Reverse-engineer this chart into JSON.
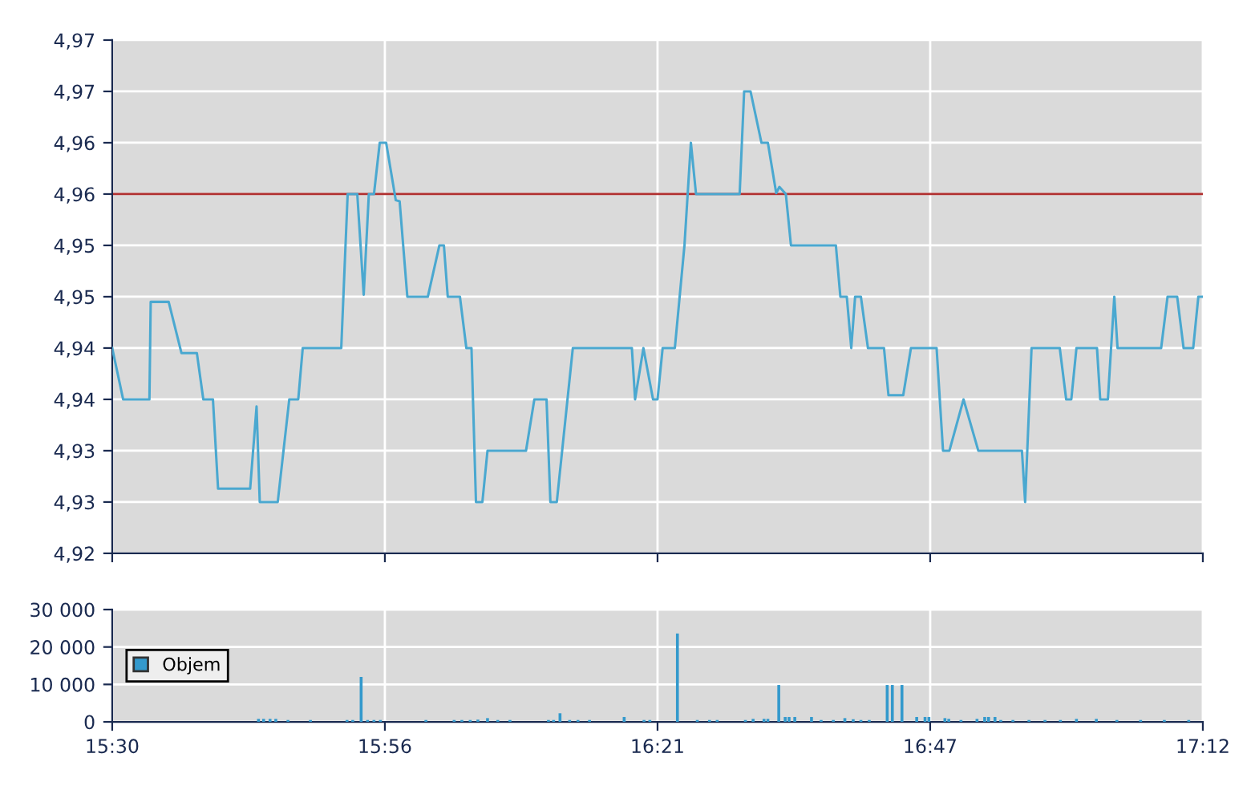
{
  "chart_data": [
    {
      "type": "line",
      "tick_labels": "y",
      "grid": true,
      "legend": false,
      "marker": "none",
      "line_style": "solid",
      "xlim": [
        15.5,
        17.2
      ],
      "xticks": [
        {
          "value": 15.5,
          "label": null
        },
        {
          "value": 15.925,
          "label": null
        },
        {
          "value": 16.35,
          "label": null
        },
        {
          "value": 16.775,
          "label": null
        },
        {
          "value": 17.2,
          "label": null
        }
      ],
      "ylim": [
        4.92,
        4.97
      ],
      "yticks": [
        {
          "value": 4.92,
          "label": "4,92"
        },
        {
          "value": 4.925,
          "label": "4,93"
        },
        {
          "value": 4.93,
          "label": "4,93"
        },
        {
          "value": 4.935,
          "label": "4,94"
        },
        {
          "value": 4.94,
          "label": "4,94"
        },
        {
          "value": 4.945,
          "label": "4,95"
        },
        {
          "value": 4.95,
          "label": "4,95"
        },
        {
          "value": 4.955,
          "label": "4,96"
        },
        {
          "value": 4.96,
          "label": "4,96"
        },
        {
          "value": 4.965,
          "label": "4,97"
        },
        {
          "value": 4.97,
          "label": "4,97"
        }
      ],
      "ref_lines": [
        {
          "axis": "y",
          "value": 4.955,
          "color": "#b03030"
        }
      ],
      "series": [
        {
          "color": "#4aa8d0",
          "x": [
            15.5,
            15.517,
            15.558,
            15.56,
            15.588,
            15.608,
            15.632,
            15.642,
            15.657,
            15.665,
            15.715,
            15.725,
            15.73,
            15.758,
            15.776,
            15.79,
            15.797,
            15.857,
            15.867,
            15.882,
            15.892,
            15.9,
            15.908,
            15.917,
            15.927,
            15.942,
            15.948,
            15.96,
            15.992,
            16.01,
            16.017,
            16.023,
            16.042,
            16.052,
            16.06,
            16.067,
            16.077,
            16.085,
            16.145,
            16.158,
            16.177,
            16.183,
            16.193,
            16.218,
            16.31,
            16.315,
            16.328,
            16.343,
            16.35,
            16.358,
            16.377,
            16.392,
            16.402,
            16.41,
            16.478,
            16.485,
            16.495,
            16.512,
            16.522,
            16.535,
            16.54,
            16.55,
            16.558,
            16.628,
            16.635,
            16.645,
            16.652,
            16.658,
            16.667,
            16.678,
            16.703,
            16.71,
            16.733,
            16.745,
            16.785,
            16.795,
            16.805,
            16.827,
            16.85,
            16.918,
            16.923,
            16.933,
            16.977,
            16.987,
            16.995,
            17.003,
            17.035,
            17.04,
            17.052,
            17.062,
            17.067,
            17.135,
            17.145,
            17.16,
            17.17,
            17.185,
            17.193,
            17.2
          ],
          "values": [
            4.94,
            4.935,
            4.935,
            4.9445,
            4.9445,
            4.9395,
            4.9395,
            4.935,
            4.935,
            4.9263,
            4.9263,
            4.9343,
            4.925,
            4.925,
            4.935,
            4.935,
            4.94,
            4.94,
            4.955,
            4.955,
            4.9452,
            4.955,
            4.955,
            4.96,
            4.96,
            4.9544,
            4.9543,
            4.945,
            4.945,
            4.95,
            4.95,
            4.945,
            4.945,
            4.94,
            4.94,
            4.925,
            4.925,
            4.93,
            4.93,
            4.935,
            4.935,
            4.925,
            4.925,
            4.94,
            4.94,
            4.935,
            4.94,
            4.935,
            4.935,
            4.94,
            4.94,
            4.95,
            4.96,
            4.955,
            4.955,
            4.965,
            4.965,
            4.96,
            4.96,
            4.9551,
            4.9557,
            4.955,
            4.95,
            4.95,
            4.945,
            4.945,
            4.94,
            4.945,
            4.945,
            4.94,
            4.94,
            4.9354,
            4.9354,
            4.94,
            4.94,
            4.93,
            4.93,
            4.935,
            4.93,
            4.93,
            4.925,
            4.94,
            4.94,
            4.935,
            4.935,
            4.94,
            4.94,
            4.935,
            4.935,
            4.945,
            4.94,
            4.94,
            4.945,
            4.945,
            4.94,
            4.94,
            4.945,
            4.945
          ]
        }
      ]
    },
    {
      "type": "bar",
      "grid": true,
      "legend": "left",
      "xlim": [
        15.5,
        17.2
      ],
      "xticks": [
        {
          "value": 15.5,
          "label": "15:30"
        },
        {
          "value": 15.925,
          "label": "15:56"
        },
        {
          "value": 16.35,
          "label": "16:21"
        },
        {
          "value": 16.775,
          "label": "16:47"
        },
        {
          "value": 17.2,
          "label": "17:12"
        }
      ],
      "ylim": [
        0,
        30000
      ],
      "yticks": [
        0,
        {
          "value": 10000,
          "label": "10 000"
        },
        {
          "value": 20000,
          "label": "20 000"
        },
        {
          "value": 30000,
          "label": "30 000"
        }
      ],
      "x": [
        15.728,
        15.736,
        15.746,
        15.755,
        15.774,
        15.809,
        15.866,
        15.875,
        15.888,
        15.898,
        15.908,
        15.918,
        15.989,
        16.033,
        16.045,
        16.058,
        16.07,
        16.085,
        16.101,
        16.12,
        16.18,
        16.188,
        16.198,
        16.213,
        16.226,
        16.244,
        16.298,
        16.329,
        16.338,
        16.381,
        16.412,
        16.431,
        16.443,
        16.487,
        16.499,
        16.516,
        16.522,
        16.539,
        16.549,
        16.555,
        16.564,
        16.59,
        16.605,
        16.624,
        16.642,
        16.655,
        16.667,
        16.68,
        16.708,
        16.716,
        16.731,
        16.754,
        16.767,
        16.773,
        16.798,
        16.804,
        16.823,
        16.848,
        16.86,
        16.866,
        16.876,
        16.885,
        16.904,
        16.929,
        16.954,
        16.978,
        17.003,
        17.034,
        17.066,
        17.103,
        17.14,
        17.178
      ],
      "series": [
        {
          "name": "Objem",
          "color": "#3399cc",
          "values": [
            800,
            800,
            800,
            800,
            500,
            500,
            500,
            500,
            12000,
            500,
            500,
            500,
            500,
            500,
            500,
            500,
            600,
            1000,
            500,
            500,
            500,
            500,
            2300,
            500,
            500,
            500,
            1300,
            500,
            500,
            23600,
            500,
            500,
            500,
            500,
            800,
            800,
            800,
            9850,
            1300,
            1300,
            1300,
            1300,
            500,
            500,
            1000,
            700,
            500,
            500,
            9850,
            9850,
            9850,
            1300,
            1300,
            1300,
            1000,
            800,
            500,
            800,
            1300,
            1300,
            1300,
            500,
            500,
            500,
            500,
            500,
            800,
            800,
            500,
            500,
            500,
            500
          ]
        }
      ]
    }
  ]
}
